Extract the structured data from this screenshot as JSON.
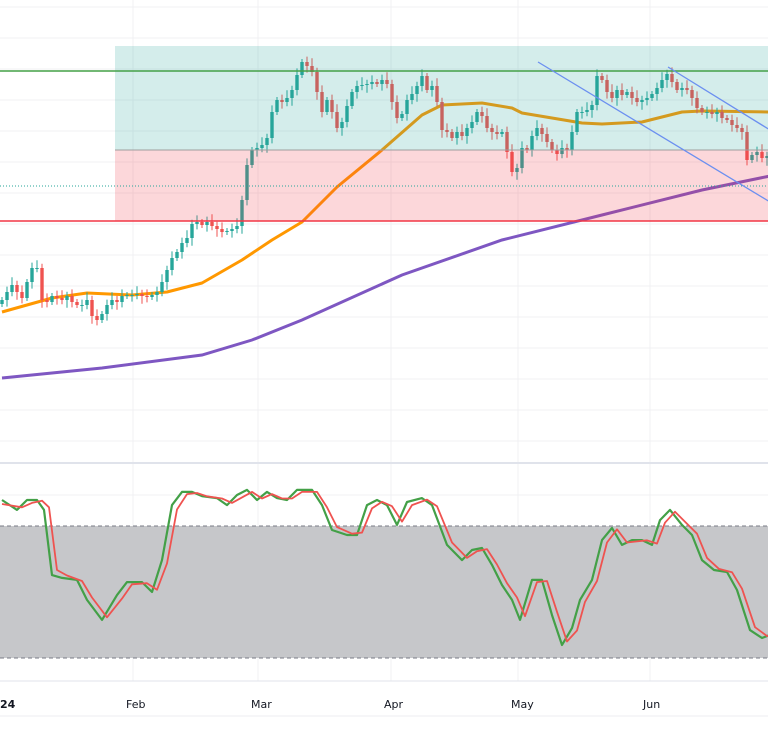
{
  "chart_data": {
    "type": "candlestick",
    "title": "",
    "colors": {
      "up": "#26a69a",
      "down": "#ef5350",
      "ma_fast": "#ff9800",
      "ma_slow": "#7e57c2",
      "resistance": "#43a047",
      "support": "#f23645",
      "mid": "#9e9e9e",
      "zone_upper": "#26a69a",
      "zone_lower": "#f23645",
      "channel": "#6b8ff0",
      "last_price": "#26a69a",
      "stoch_k": "#43a047",
      "stoch_d": "#ef5350",
      "stoch_band": "#c6c7ca"
    },
    "price_range": [
      100,
      146
    ],
    "closes": [
      116.0,
      116.8,
      117.5,
      116.8,
      116.2,
      117.8,
      119.2,
      119.2,
      116.0,
      115.8,
      116.4,
      116.2,
      116.0,
      116.4,
      115.8,
      115.5,
      115.5,
      116.0,
      114.4,
      114.0,
      114.6,
      115.5,
      116.0,
      115.8,
      116.4,
      116.5,
      116.5,
      116.6,
      116.4,
      116.3,
      116.5,
      116.8,
      117.8,
      119.0,
      120.2,
      120.8,
      121.7,
      122.2,
      123.6,
      123.8,
      123.5,
      123.8,
      123.4,
      123.1,
      122.8,
      122.9,
      123.1,
      123.4,
      126.0,
      129.5,
      131.0,
      131.2,
      131.5,
      132.2,
      134.8,
      136.0,
      135.8,
      136.2,
      137.0,
      138.5,
      139.8,
      139.4,
      138.8,
      136.8,
      134.8,
      136.0,
      134.8,
      133.2,
      133.8,
      135.4,
      136.8,
      137.4,
      137.5,
      137.6,
      137.8,
      137.6,
      138.0,
      137.6,
      135.8,
      134.2,
      134.6,
      136.0,
      136.6,
      137.4,
      138.4,
      137.0,
      137.4,
      135.8,
      133.0,
      132.8,
      132.2,
      132.8,
      132.4,
      133.2,
      133.8,
      134.8,
      134.4,
      133.2,
      132.8,
      132.6,
      132.8,
      130.8,
      128.8,
      129.2,
      131.2,
      131.0,
      132.4,
      133.2,
      132.6,
      131.8,
      131.0,
      130.6,
      131.2,
      131.0,
      132.8,
      134.8,
      134.8,
      135.0,
      135.5,
      138.4,
      138.0,
      136.8,
      136.2,
      137.0,
      136.5,
      136.8,
      136.2,
      135.8,
      136.0,
      136.2,
      136.6,
      137.2,
      138.0,
      138.6,
      137.8,
      137.0,
      137.2,
      137.0,
      136.2,
      135.2,
      134.8,
      134.8,
      134.6,
      134.8,
      134.2,
      134.0,
      133.5,
      133.2,
      132.8,
      130.0,
      130.5,
      130.8,
      130.2,
      130.4
    ],
    "ma_fast": [
      [
        0,
        114.8
      ],
      [
        10,
        116.2
      ],
      [
        17,
        116.7
      ],
      [
        26,
        116.5
      ],
      [
        33,
        116.8
      ],
      [
        40,
        117.7
      ],
      [
        48,
        120.0
      ],
      [
        54,
        122.0
      ],
      [
        60,
        123.8
      ],
      [
        67,
        127.3
      ],
      [
        76,
        131.0
      ],
      [
        84,
        134.5
      ],
      [
        88,
        135.5
      ],
      [
        96,
        135.7
      ],
      [
        102,
        135.2
      ],
      [
        104,
        134.7
      ],
      [
        110,
        134.2
      ],
      [
        116,
        133.7
      ],
      [
        120,
        133.6
      ],
      [
        128,
        133.8
      ],
      [
        136,
        134.8
      ],
      [
        140,
        134.9
      ],
      [
        153.6,
        134.8
      ]
    ],
    "ma_slow": [
      [
        0,
        108.2
      ],
      [
        20,
        109.2
      ],
      [
        40,
        110.5
      ],
      [
        50,
        112.0
      ],
      [
        60,
        114.0
      ],
      [
        80,
        118.5
      ],
      [
        100,
        122.0
      ],
      [
        120,
        124.5
      ],
      [
        140,
        127.0
      ],
      [
        153.6,
        128.4
      ]
    ],
    "levels": {
      "resistance": 138.9,
      "mid": 131.0,
      "support": 123.9,
      "zone_top": 141.4,
      "last_price": 127.4,
      "zone_start_index": 23
    },
    "channel_lines": [
      {
        "from": [
          107.2,
          139.8
        ],
        "to": [
          153.6,
          125.8
        ]
      },
      {
        "from": [
          133.2,
          139.3
        ],
        "to": [
          153.6,
          133.0
        ]
      }
    ],
    "stochastic": {
      "range": [
        0,
        100
      ],
      "upper_band": 80,
      "lower_band": 20,
      "k": [
        [
          0,
          91.8
        ],
        [
          3,
          87.3
        ],
        [
          5,
          91.8
        ],
        [
          7,
          91.8
        ],
        [
          8.4,
          87.3
        ],
        [
          10,
          57.7
        ],
        [
          12,
          56.4
        ],
        [
          15,
          55.5
        ],
        [
          17,
          46.4
        ],
        [
          20,
          37.3
        ],
        [
          23,
          48.6
        ],
        [
          25,
          54.5
        ],
        [
          28,
          54.5
        ],
        [
          30,
          50.0
        ],
        [
          32,
          64.5
        ],
        [
          34,
          89.5
        ],
        [
          36,
          95.5
        ],
        [
          38,
          95.5
        ],
        [
          40,
          93.6
        ],
        [
          43,
          92.7
        ],
        [
          45,
          89.5
        ],
        [
          47,
          94.1
        ],
        [
          49,
          96.4
        ],
        [
          51,
          91.8
        ],
        [
          53,
          95.5
        ],
        [
          55,
          92.7
        ],
        [
          57,
          91.8
        ],
        [
          59,
          96.4
        ],
        [
          62,
          96.4
        ],
        [
          64,
          89.5
        ],
        [
          66,
          78.2
        ],
        [
          69,
          75.9
        ],
        [
          71,
          75.9
        ],
        [
          73,
          89.5
        ],
        [
          75,
          91.8
        ],
        [
          77,
          89.5
        ],
        [
          79,
          80.5
        ],
        [
          81,
          90.9
        ],
        [
          84,
          92.7
        ],
        [
          86,
          89.5
        ],
        [
          89,
          71.4
        ],
        [
          92,
          64.5
        ],
        [
          94,
          69.1
        ],
        [
          96,
          70.0
        ],
        [
          98,
          62.3
        ],
        [
          100,
          53.2
        ],
        [
          102,
          46.4
        ],
        [
          103.6,
          37.3
        ],
        [
          106,
          55.5
        ],
        [
          108,
          55.5
        ],
        [
          110,
          39.5
        ],
        [
          112,
          25.9
        ],
        [
          114,
          33.6
        ],
        [
          115.6,
          46.4
        ],
        [
          118,
          55.5
        ],
        [
          120,
          73.6
        ],
        [
          122,
          79.1
        ],
        [
          124,
          71.4
        ],
        [
          126,
          73.6
        ],
        [
          128,
          73.6
        ],
        [
          130,
          71.4
        ],
        [
          131.6,
          82.7
        ],
        [
          133.6,
          87.3
        ],
        [
          136,
          80.5
        ],
        [
          138,
          75.9
        ],
        [
          140,
          64.5
        ],
        [
          142.4,
          60.0
        ],
        [
          145,
          59.1
        ],
        [
          147,
          50.9
        ],
        [
          149.6,
          32.7
        ],
        [
          152,
          29.1
        ],
        [
          153.6,
          30.5
        ]
      ],
      "d": [
        [
          0,
          90.0
        ],
        [
          4,
          88.5
        ],
        [
          6,
          90.5
        ],
        [
          8,
          91.5
        ],
        [
          9.4,
          88.5
        ],
        [
          11,
          60.0
        ],
        [
          13,
          57.5
        ],
        [
          16,
          55.0
        ],
        [
          18,
          47.5
        ],
        [
          21,
          38.5
        ],
        [
          24,
          47.0
        ],
        [
          26,
          53.5
        ],
        [
          29,
          54.0
        ],
        [
          31,
          51.0
        ],
        [
          33,
          63.0
        ],
        [
          35,
          87.5
        ],
        [
          37,
          94.5
        ],
        [
          39,
          95.0
        ],
        [
          41,
          93.5
        ],
        [
          44,
          92.5
        ],
        [
          46,
          90.5
        ],
        [
          48,
          93.0
        ],
        [
          50,
          95.5
        ],
        [
          52,
          92.5
        ],
        [
          54,
          94.5
        ],
        [
          56,
          92.5
        ],
        [
          58,
          92.5
        ],
        [
          60,
          95.5
        ],
        [
          63,
          95.5
        ],
        [
          65,
          88.5
        ],
        [
          67,
          79.5
        ],
        [
          70,
          76.5
        ],
        [
          72,
          77.0
        ],
        [
          74,
          88.0
        ],
        [
          76,
          91.0
        ],
        [
          78,
          89.0
        ],
        [
          80,
          82.0
        ],
        [
          82,
          89.5
        ],
        [
          85,
          92.0
        ],
        [
          87,
          89.0
        ],
        [
          90,
          72.5
        ],
        [
          93,
          65.5
        ],
        [
          95,
          68.5
        ],
        [
          97,
          69.5
        ],
        [
          99,
          62.5
        ],
        [
          101,
          54.0
        ],
        [
          103,
          47.5
        ],
        [
          104.6,
          39.0
        ],
        [
          107,
          54.5
        ],
        [
          109,
          55.0
        ],
        [
          111,
          41.0
        ],
        [
          113,
          27.5
        ],
        [
          115,
          32.5
        ],
        [
          116.6,
          45.5
        ],
        [
          119,
          55.0
        ],
        [
          121,
          72.5
        ],
        [
          123,
          78.5
        ],
        [
          125,
          72.5
        ],
        [
          127,
          73.0
        ],
        [
          129,
          73.5
        ],
        [
          131,
          72.0
        ],
        [
          132.6,
          81.5
        ],
        [
          134.6,
          86.5
        ],
        [
          137,
          81.0
        ],
        [
          139,
          76.5
        ],
        [
          141,
          65.5
        ],
        [
          143.4,
          60.5
        ],
        [
          146,
          59.0
        ],
        [
          148,
          51.5
        ],
        [
          150.6,
          34.0
        ],
        [
          153,
          30.0
        ],
        [
          154.6,
          30.0
        ]
      ]
    },
    "x_ticks": [
      {
        "label": "24",
        "index": 0.4
      },
      {
        "label": "Feb",
        "index": 26
      },
      {
        "label": "Mar",
        "index": 51
      },
      {
        "label": "Apr",
        "index": 77.6
      },
      {
        "label": "May",
        "index": 103
      },
      {
        "label": "Jun",
        "index": 129.4
      }
    ]
  }
}
